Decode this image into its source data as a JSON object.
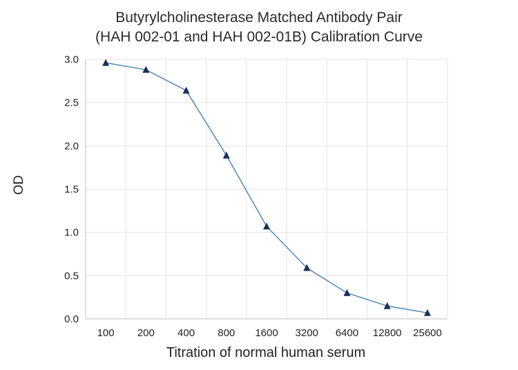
{
  "chart_data": {
    "type": "line",
    "title": [
      "Butyrylcholinesterase Matched Antibody Pair",
      "(HAH 002-01 and HAH 002-01B) Calibration Curve"
    ],
    "xlabel": "Titration of normal human serum",
    "ylabel": "OD",
    "categories": [
      "100",
      "200",
      "400",
      "800",
      "1600",
      "3200",
      "6400",
      "12800",
      "25600"
    ],
    "series": [
      {
        "values": [
          2.96,
          2.88,
          2.64,
          1.89,
          1.07,
          0.59,
          0.3,
          0.15,
          0.07
        ]
      }
    ],
    "ylim": [
      0,
      3.0
    ],
    "yticks": [
      "0.0",
      "0.5",
      "1.0",
      "1.5",
      "2.0",
      "2.5",
      "3.0"
    ],
    "grid": true,
    "colors": {
      "line": "#3a7ab5",
      "marker": "#1b2f57",
      "grid": "#e3e3e3"
    }
  }
}
